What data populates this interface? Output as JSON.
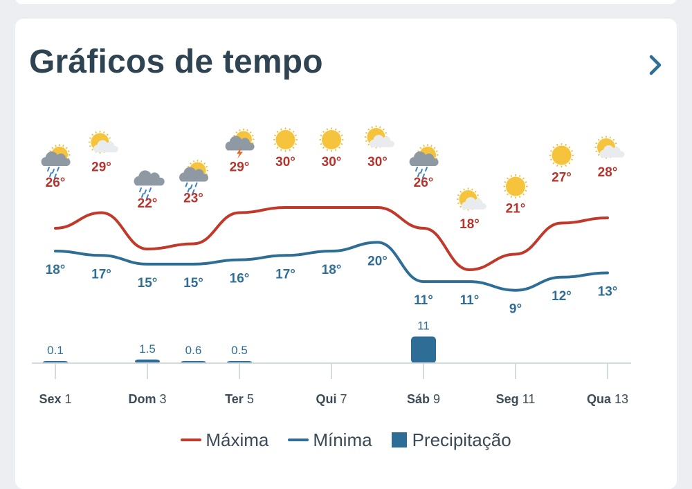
{
  "header": {
    "title": "Gráficos de tempo",
    "chevron_icon": "chevron-right-icon"
  },
  "colors": {
    "max": "#c0392b",
    "min": "#2e6d95",
    "precip": "#2e6d95",
    "accent": "#2e6d95"
  },
  "legend": {
    "max_label": "Máxima",
    "min_label": "Mínima",
    "precip_label": "Precipitação"
  },
  "chart_data": {
    "type": "line",
    "days": [
      {
        "icon": "sun-cloud-rain-icon"
      },
      {
        "icon": "sun-cloud-icon"
      },
      {
        "icon": "cloud-rain-icon"
      },
      {
        "icon": "sun-cloud-rain-icon"
      },
      {
        "icon": "sun-cloud-storm-icon"
      },
      {
        "icon": "sun-icon"
      },
      {
        "icon": "sun-icon"
      },
      {
        "icon": "sun-cloud-icon"
      },
      {
        "icon": "sun-cloud-rain-icon"
      },
      {
        "icon": "sun-cloud-icon"
      },
      {
        "icon": "sun-icon"
      },
      {
        "icon": "sun-icon"
      },
      {
        "icon": "sun-cloud-icon"
      }
    ],
    "series": [
      {
        "name": "Máxima",
        "values": [
          26,
          29,
          22,
          23,
          29,
          30,
          30,
          30,
          26,
          18,
          21,
          27,
          28
        ],
        "labels": [
          "26°",
          "29°",
          "22°",
          "23°",
          "29°",
          "30°",
          "30°",
          "30°",
          "26°",
          "18°",
          "21°",
          "27°",
          "28°"
        ]
      },
      {
        "name": "Mínima",
        "values": [
          18,
          17,
          15,
          15,
          16,
          17,
          18,
          20,
          11,
          11,
          9,
          12,
          13
        ],
        "labels": [
          "18°",
          "17°",
          "15°",
          "15°",
          "16°",
          "17°",
          "18°",
          "20°",
          "11°",
          "11°",
          "9°",
          "12°",
          "13°"
        ]
      }
    ],
    "precipitation": {
      "name": "Precipitação",
      "values": [
        0.1,
        0,
        1.5,
        0.6,
        0.5,
        0,
        0,
        0,
        11,
        0,
        0,
        0,
        0
      ],
      "labels": [
        "0.1",
        "",
        "1.5",
        "0.6",
        "0.5",
        "",
        "",
        "",
        "11",
        "",
        "",
        "",
        ""
      ]
    },
    "x_ticks": [
      {
        "index": 0,
        "bold": "Sex",
        "rest": " 1"
      },
      {
        "index": 2,
        "bold": "Dom",
        "rest": " 3"
      },
      {
        "index": 4,
        "bold": "Ter",
        "rest": " 5"
      },
      {
        "index": 6,
        "bold": "Qui",
        "rest": " 7"
      },
      {
        "index": 8,
        "bold": "Sáb",
        "rest": " 9"
      },
      {
        "index": 10,
        "bold": "Seg",
        "rest": " 11"
      },
      {
        "index": 12,
        "bold": "Qua",
        "rest": " 13"
      }
    ],
    "legend_placement": "bottom-center"
  }
}
